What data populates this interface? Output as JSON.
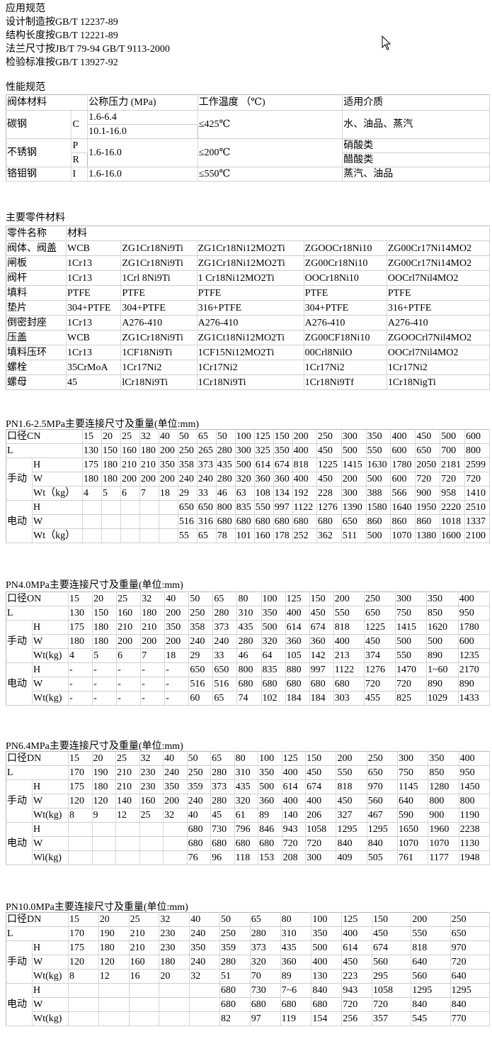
{
  "standards": {
    "heading": "应用规范",
    "lines": [
      "设计制造按GB/T 12237-89",
      "结构长度按GB/T 12221-89",
      "法兰尺寸按JB/T 79-94 GB/T 9113-2000",
      "检验标准按GB/T 13927-92"
    ]
  },
  "performance": {
    "heading": "性能规范",
    "headers": [
      "阀体材料",
      "公称压力 (MPa)",
      "工作温度 （℃)",
      "适用介质"
    ],
    "carbon": {
      "name": "碳钢",
      "code": "C",
      "pressures": [
        "1.6-6.4",
        "10.1-16.0"
      ],
      "temp": "≤425℃",
      "media": "水、油品、蒸汽"
    },
    "stainless": {
      "name": "不锈钢",
      "codes": [
        "P",
        "R"
      ],
      "pressure": "1.6-16.0",
      "temp": "≤200℃",
      "media": [
        "硝酸类",
        "醋酸类"
      ]
    },
    "crmo": {
      "name": "铬钼钢",
      "code": "I",
      "pressure": "1.6-16.0",
      "temp": "≤550℃",
      "media": "蒸汽、油品"
    }
  },
  "materials": {
    "heading": "主要零件材料",
    "headers": [
      "零件名称",
      "材料"
    ],
    "rows": [
      [
        "阀体、阀盖",
        "WCB",
        "ZG1Cr18Ni9Ti",
        "ZG1Cr18Ni12MO2Ti",
        "ZGOOCr18Ni10",
        "ZG00Cr17Ni14MO2"
      ],
      [
        "闸板",
        "1Cr13",
        "ZG1Cr18Ni9Ti",
        "ZG1Cr18Ni12MO2Ti",
        "ZG00Cr18Ni10",
        "ZG00Cr17Ni14MO2"
      ],
      [
        "阀杆",
        "1Cr13",
        "1Crl 8Ni9Ti",
        "1 Cr18Ni12MO2Ti",
        "OOCr18Ni10",
        "OOCrl7Nil4MO2"
      ],
      [
        "填料",
        "PTFE",
        "PTFE",
        "PTFE",
        "PTFE",
        "PTFE"
      ],
      [
        "垫片",
        "304+PTFE",
        "304+PTFE",
        "316+PTFE",
        "304+PTFE",
        "316+PTFE"
      ],
      [
        "倒密封座",
        "1Cr13",
        "A276-410",
        "A276-410",
        "A276-410",
        "A276-410"
      ],
      [
        "压盖",
        "WCB",
        "ZG1Cr18Ni9Ti",
        "ZG1Ct18Ni12MO2Ti",
        "ZG00CF18Ni10",
        "ZGOOCrl7Nil4MO2"
      ],
      [
        "填料压环",
        "1Cr13",
        "1CF18Ni9Ti",
        "1CF15Ni12MO2Ti",
        "00Crl8NilO",
        "OOCrl7Nil4MO2"
      ],
      [
        "螺栓",
        "35CrMoA",
        "1Cr17Ni2",
        "1Cr17Ni2",
        "1Cr17Ni2",
        "1Cr17Ni2"
      ],
      [
        "螺母",
        "45",
        "lCr18Ni9Ti",
        "1Cr18Ni9Ti",
        "1Cr18Ni9Tf",
        "1Cr18NigTi"
      ]
    ]
  },
  "dimension_tables": [
    {
      "title": "PN1.6-2.5MPa主要连接尺寸及重量(单位:mm)",
      "size_label": "口径CN",
      "l_label": "L",
      "manual_label": "手动",
      "electric_label": "电动",
      "sizes": [
        "15",
        "20",
        "25",
        "32",
        "40",
        "50",
        "65",
        "50",
        "100",
        "125",
        "150",
        "200",
        "250",
        "300",
        "350",
        "400",
        "450",
        "500",
        "600"
      ],
      "L": [
        "130",
        "150",
        "160",
        "180",
        "200",
        "250",
        "265",
        "280",
        "300",
        "325",
        "350",
        "400",
        "450",
        "500",
        "550",
        "600",
        "650",
        "700",
        "800"
      ],
      "manual": [
        {
          "label": "H",
          "values": [
            "175",
            "180",
            "210",
            "210",
            "350",
            "358",
            "373",
            "435",
            "500",
            "614",
            "674",
            "818",
            "1225",
            "1415",
            "1630",
            "1780",
            "2050",
            "2181",
            "2599"
          ]
        },
        {
          "label": "W",
          "values": [
            "180",
            "180",
            "200",
            "200",
            "200",
            "240",
            "240",
            "280",
            "320",
            "360",
            "360",
            "400",
            "450",
            "200",
            "500",
            "600",
            "720",
            "720",
            "720"
          ]
        },
        {
          "label": "Wt（kg）",
          "values": [
            "4",
            "5",
            "6",
            "7",
            "18",
            "29",
            "33",
            "46",
            "63",
            "108",
            "134",
            "192",
            "228",
            "300",
            "388",
            "566",
            "900",
            "958",
            "1410"
          ]
        }
      ],
      "electric": [
        {
          "label": "H",
          "values": [
            "",
            "",
            "",
            "",
            "",
            "650",
            "650",
            "800",
            "835",
            "550",
            "997",
            "1122",
            "1276",
            "1390",
            "1580",
            "1640",
            "1950",
            "2220",
            "2510"
          ]
        },
        {
          "label": "W",
          "values": [
            "",
            "",
            "",
            "",
            "",
            "516",
            "316",
            "680",
            "680",
            "680",
            "680",
            "680",
            "680",
            "650",
            "860",
            "860",
            "860",
            "1018",
            "1337"
          ]
        },
        {
          "label": "Wt（kg）",
          "values": [
            "",
            "",
            "",
            "",
            "",
            "55",
            "65",
            "78",
            "101",
            "160",
            "178",
            "252",
            "362",
            "511",
            "500",
            "1070",
            "1380",
            "1600",
            "2100"
          ]
        }
      ]
    },
    {
      "title": "PN4.0MPa主要连接尺寸及重量(单位:mm)",
      "size_label": "口径ON",
      "l_label": "L",
      "manual_label": "手动",
      "electric_label": "电动",
      "sizes": [
        "15",
        "20",
        "25",
        "32",
        "40",
        "50",
        "65",
        "80",
        "100",
        "125",
        "150",
        "200",
        "250",
        "300",
        "350",
        "400"
      ],
      "L": [
        "130",
        "150",
        "160",
        "180",
        "200",
        "250",
        "280",
        "310",
        "350",
        "400",
        "450",
        "550",
        "650",
        "750",
        "850",
        "950"
      ],
      "manual": [
        {
          "label": "H",
          "values": [
            "175",
            "180",
            "210",
            "210",
            "350",
            "358",
            "373",
            "435",
            "500",
            "614",
            "674",
            "818",
            "1225",
            "1415",
            "1620",
            "1780"
          ]
        },
        {
          "label": "W",
          "values": [
            "180",
            "180",
            "200",
            "200",
            "200",
            "240",
            "240",
            "280",
            "320",
            "360",
            "360",
            "400",
            "450",
            "500",
            "500",
            "600"
          ]
        },
        {
          "label": "Wt(kg)",
          "values": [
            "4",
            "5",
            "6",
            "7",
            "18",
            "29",
            "33",
            "46",
            "64",
            "105",
            "142",
            "213",
            "374",
            "550",
            "890",
            "1235"
          ]
        }
      ],
      "electric": [
        {
          "label": "H",
          "values": [
            "-",
            "-",
            "-",
            "-",
            "-",
            "650",
            "650",
            "800",
            "835",
            "880",
            "997",
            "1122",
            "1276",
            "1470",
            "1~60",
            "2170"
          ]
        },
        {
          "label": "W",
          "values": [
            "-",
            "-",
            "-",
            "-",
            "-",
            "516",
            "516",
            "680",
            "680",
            "680",
            "680",
            "680",
            "720",
            "720",
            "890",
            "890"
          ]
        },
        {
          "label": "Wt(kg)",
          "values": [
            "-",
            "-",
            "-",
            "-",
            "-",
            "60",
            "65",
            "74",
            "102",
            "184",
            "184",
            "303",
            "455",
            "825",
            "1029",
            "1433"
          ]
        }
      ]
    },
    {
      "title": "PN6.4MPa主要连接尺寸及重量(单位:mm)",
      "size_label": "口径DN",
      "l_label": "L",
      "manual_label": "手动",
      "electric_label": "电动",
      "sizes": [
        "15",
        "20",
        "25",
        "32",
        "40",
        "50",
        "65",
        "80",
        "100",
        "125",
        "150",
        "200",
        "250",
        "300",
        "350",
        "400"
      ],
      "L": [
        "170",
        "190",
        "210",
        "230",
        "240",
        "250",
        "280",
        "310",
        "350",
        "400",
        "450",
        "550",
        "650",
        "750",
        "850",
        "950"
      ],
      "manual": [
        {
          "label": "H",
          "values": [
            "175",
            "180",
            "210",
            "230",
            "350",
            "359",
            "373",
            "435",
            "500",
            "614",
            "674",
            "818",
            "970",
            "1145",
            "1280",
            "1450"
          ]
        },
        {
          "label": "W",
          "values": [
            "120",
            "120",
            "140",
            "160",
            "200",
            "240",
            "280",
            "320",
            "360",
            "400",
            "400",
            "450",
            "560",
            "640",
            "800",
            "800"
          ]
        },
        {
          "label": "Wt(kg)",
          "values": [
            "8",
            "9",
            "12",
            "25",
            "32",
            "40",
            "45",
            "61",
            "89",
            "140",
            "206",
            "327",
            "467",
            "590",
            "900",
            "1190"
          ]
        }
      ],
      "electric": [
        {
          "label": "H",
          "values": [
            "",
            "",
            "",
            "",
            "",
            "680",
            "730",
            "796",
            "846",
            "943",
            "1058",
            "1295",
            "1295",
            "1650",
            "1960",
            "2238"
          ]
        },
        {
          "label": "W",
          "values": [
            "",
            "",
            "",
            "",
            "",
            "680",
            "680",
            "680",
            "680",
            "720",
            "720",
            "840",
            "840",
            "1070",
            "1070",
            "1130"
          ]
        },
        {
          "label": "Wi(kg)",
          "values": [
            "",
            "",
            "",
            "",
            "",
            "76",
            "96",
            "118",
            "153",
            "208",
            "300",
            "409",
            "505",
            "761",
            "1177",
            "1948"
          ]
        }
      ]
    },
    {
      "title": "PN10.0MPa主要连接尺寸及重量(单位:mm)",
      "size_label": "口径DN",
      "l_label": "L",
      "manual_label": "手动",
      "electric_label": "电动",
      "sizes": [
        "15",
        "20",
        "25",
        "32",
        "40",
        "50",
        "65",
        "80",
        "100",
        "125",
        "150",
        "200",
        "250"
      ],
      "L": [
        "170",
        "190",
        "210",
        "230",
        "240",
        "250",
        "280",
        "310",
        "350",
        "400",
        "450",
        "550",
        "650"
      ],
      "manual": [
        {
          "label": "H",
          "values": [
            "175",
            "180",
            "210",
            "230",
            "350",
            "359",
            "373",
            "435",
            "500",
            "614",
            "674",
            "818",
            "970"
          ]
        },
        {
          "label": "W",
          "values": [
            "120",
            "120",
            "160",
            "180",
            "240",
            "280",
            "320",
            "360",
            "400",
            "450",
            "560",
            "640",
            "720"
          ]
        },
        {
          "label": "Wt(kg)",
          "values": [
            "8",
            "12",
            "16",
            "20",
            "32",
            "51",
            "70",
            "89",
            "130",
            "223",
            "295",
            "560",
            "640"
          ]
        }
      ],
      "electric": [
        {
          "label": "H",
          "values": [
            "",
            "",
            "",
            "",
            "",
            "680",
            "730",
            "7~6",
            "840",
            "943",
            "1058",
            "1295",
            "1295"
          ]
        },
        {
          "label": "W",
          "values": [
            "",
            "",
            "",
            "",
            "",
            "680",
            "680",
            "680",
            "680",
            "720",
            "720",
            "840",
            "840"
          ]
        },
        {
          "label": "Wt(kg)",
          "values": [
            "",
            "",
            "",
            "",
            "",
            "82",
            "97",
            "119",
            "154",
            "256",
            "357",
            "545",
            "770"
          ]
        }
      ]
    }
  ]
}
